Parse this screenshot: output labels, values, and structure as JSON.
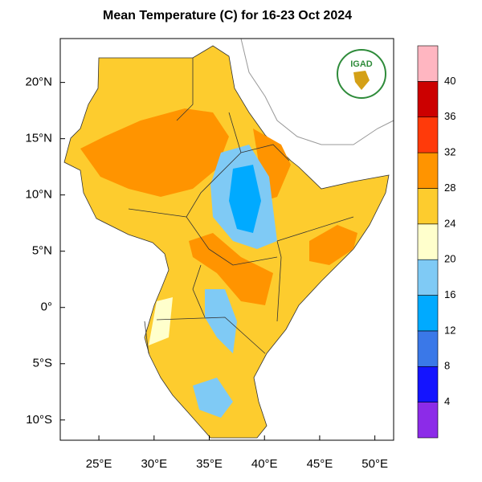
{
  "title": "Mean Temperature (C) for 16-23 Oct 2024",
  "logo": "IGAD",
  "map": {
    "xlim": [
      21.5,
      51.7
    ],
    "ylim": [
      -11.8,
      23.9
    ],
    "xticks": [
      {
        "value": 25,
        "label": "25°E"
      },
      {
        "value": 30,
        "label": "30°E"
      },
      {
        "value": 35,
        "label": "35°E"
      },
      {
        "value": 40,
        "label": "40°E"
      },
      {
        "value": 45,
        "label": "45°E"
      },
      {
        "value": 50,
        "label": "50°E"
      }
    ],
    "yticks": [
      {
        "value": 20,
        "label": "20°N"
      },
      {
        "value": 15,
        "label": "15°N"
      },
      {
        "value": 10,
        "label": "10°N"
      },
      {
        "value": 5,
        "label": "5°N"
      },
      {
        "value": 0,
        "label": "0°"
      },
      {
        "value": -5,
        "label": "5°S"
      },
      {
        "value": -10,
        "label": "10°S"
      }
    ]
  },
  "colorbar": {
    "levels": [
      4,
      8,
      12,
      16,
      20,
      24,
      28,
      32,
      36,
      40
    ],
    "colors": [
      "#8c2be8",
      "#1414ff",
      "#3a78e8",
      "#00aaff",
      "#7fcaf5",
      "#ffffcc",
      "#fdcc2e",
      "#ff9400",
      "#ff3a0a",
      "#cc0000",
      "#ffb6c1"
    ]
  }
}
